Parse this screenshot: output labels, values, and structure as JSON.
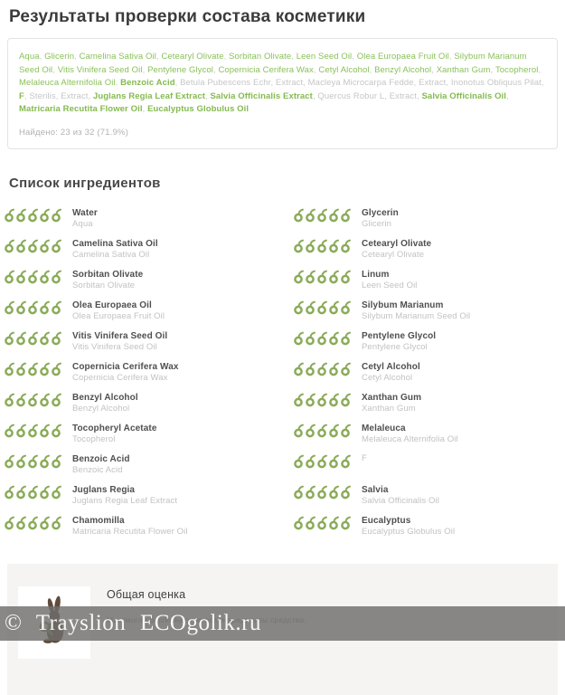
{
  "page_title": "Результаты проверки состава косметики",
  "colors": {
    "green": "#8bc05a",
    "green_bold": "#84ba4e",
    "unknown_gray": "#c6c6c6",
    "icon_green": "#8aab58",
    "rabbit_brown": "#5f4b39",
    "magnifier_green": "#76a14b"
  },
  "result_box": {
    "composition": [
      {
        "text": "Aqua",
        "status": "found"
      },
      {
        "text": "Glicerin",
        "status": "found"
      },
      {
        "text": "Camelina Sativa Oil",
        "status": "found"
      },
      {
        "text": "Cetearyl Olivate",
        "status": "found"
      },
      {
        "text": "Sorbitan Olivate",
        "status": "found"
      },
      {
        "text": "Leen Seed Oil",
        "status": "found"
      },
      {
        "text": "Olea Europaea Fruit Oil",
        "status": "found"
      },
      {
        "text": "Silybum Marianum Seed Oil",
        "status": "found"
      },
      {
        "text": "Vitis Vinifera Seed Oil",
        "status": "found"
      },
      {
        "text": "Pentylene Glycol",
        "status": "found"
      },
      {
        "text": "Copernicia Cerifera Wax",
        "status": "found"
      },
      {
        "text": "Cetyl Alcohol",
        "status": "found"
      },
      {
        "text": "Benzyl Alcohol",
        "status": "found"
      },
      {
        "text": "Xanthan Gum",
        "status": "found"
      },
      {
        "text": "Tocopherol",
        "status": "found"
      },
      {
        "text": "Melaleuca Alternifolia Oil",
        "status": "found"
      },
      {
        "text": "Benzoic Acid",
        "status": "found-bold"
      },
      {
        "text": "Betula Pubescens Echr",
        "status": "unknown"
      },
      {
        "text": "Extract",
        "status": "unknown"
      },
      {
        "text": "Macleya Microcarpa Fedde",
        "status": "unknown"
      },
      {
        "text": "Extract",
        "status": "unknown"
      },
      {
        "text": "Inonotus Obliquus Pilat",
        "status": "unknown"
      },
      {
        "text": "F",
        "status": "found-bold"
      },
      {
        "text": "Sterilis",
        "status": "unknown"
      },
      {
        "text": "Extract",
        "status": "unknown"
      },
      {
        "text": "Juglans Regia Leaf Extract",
        "status": "found-bold"
      },
      {
        "text": "Salvia Officinalis Extract",
        "status": "found-bold"
      },
      {
        "text": "Quercus Robur L",
        "status": "unknown"
      },
      {
        "text": "Extract",
        "status": "unknown"
      },
      {
        "text": "Salvia Officinalis Oil",
        "status": "found-bold"
      },
      {
        "text": "Matricaria Recutita Flower Oil",
        "status": "found-bold"
      },
      {
        "text": "Eucalyptus Globulus Oil",
        "status": "found-bold"
      }
    ],
    "found_label": "Найдено: 23 из 32 (71.9%)"
  },
  "ingredients_section": {
    "heading": "Список ингредиентов",
    "columns": [
      {
        "rows": [
          {
            "name": "Water",
            "latin": "Aqua",
            "rating": 5
          },
          {
            "name": "Camelina Sativa Oil",
            "latin": "Camelina Sativa Oil",
            "rating": 5
          },
          {
            "name": "Sorbitan Olivate",
            "latin": "Sorbitan Olivate",
            "rating": 5
          },
          {
            "name": "Olea Europaea Oil",
            "latin": "Olea Europaea Fruit Oil",
            "rating": 5
          },
          {
            "name": "Vitis Vinifera Seed Oil",
            "latin": "Vitis Vinifera Seed Oil",
            "rating": 5
          },
          {
            "name": "Copernicia Cerifera Wax",
            "latin": "Copernicia Cerifera Wax",
            "rating": 5
          },
          {
            "name": "Benzyl Alcohol",
            "latin": "Benzyl Alcohol",
            "rating": 5
          },
          {
            "name": "Tocopheryl Acetate",
            "latin": "Tocopherol",
            "rating": 5
          },
          {
            "name": "Benzoic Acid",
            "latin": "Benzoic Acid",
            "rating": 5
          },
          {
            "name": "Juglans Regia",
            "latin": "Juglans Regia Leaf Extract",
            "rating": 5
          },
          {
            "name": "Chamomilla",
            "latin": "Matricaria Recutita Flower Oil",
            "rating": 5
          }
        ]
      },
      {
        "rows": [
          {
            "name": "Glycerin",
            "latin": "Glicerin",
            "rating": 5
          },
          {
            "name": "Cetearyl Olivate",
            "latin": "Cetearyl Olivate",
            "rating": 5
          },
          {
            "name": "Linum",
            "latin": "Leen Seed Oil",
            "rating": 5
          },
          {
            "name": "Silybum Marianum",
            "latin": "Silybum Marianum Seed Oil",
            "rating": 5
          },
          {
            "name": "Pentylene Glycol",
            "latin": "Pentylene Glycol",
            "rating": 5
          },
          {
            "name": "Cetyl Alcohol",
            "latin": "Cetyl Alcohol",
            "rating": 5
          },
          {
            "name": "Xanthan Gum",
            "latin": "Xanthan Gum",
            "rating": 5
          },
          {
            "name": "Melaleuca",
            "latin": "Melaleuca Alternifolia Oil",
            "rating": 5
          },
          {
            "name": "",
            "latin": "F",
            "rating": 5
          },
          {
            "name": "Salvia",
            "latin": "Salvia Officinalis Oil",
            "rating": 5
          },
          {
            "name": "Eucalyptus",
            "latin": "Eucalyptus Globulus Oil",
            "rating": 5
          }
        ]
      }
    ]
  },
  "overall": {
    "title": "Общая оценка",
    "subtitle": "Мы смогли распознать не все ингредиенты средства.",
    "icon": "rabbit-with-magnifier-icon"
  },
  "watermark": "©  Trayslion  ECOgolik.ru"
}
